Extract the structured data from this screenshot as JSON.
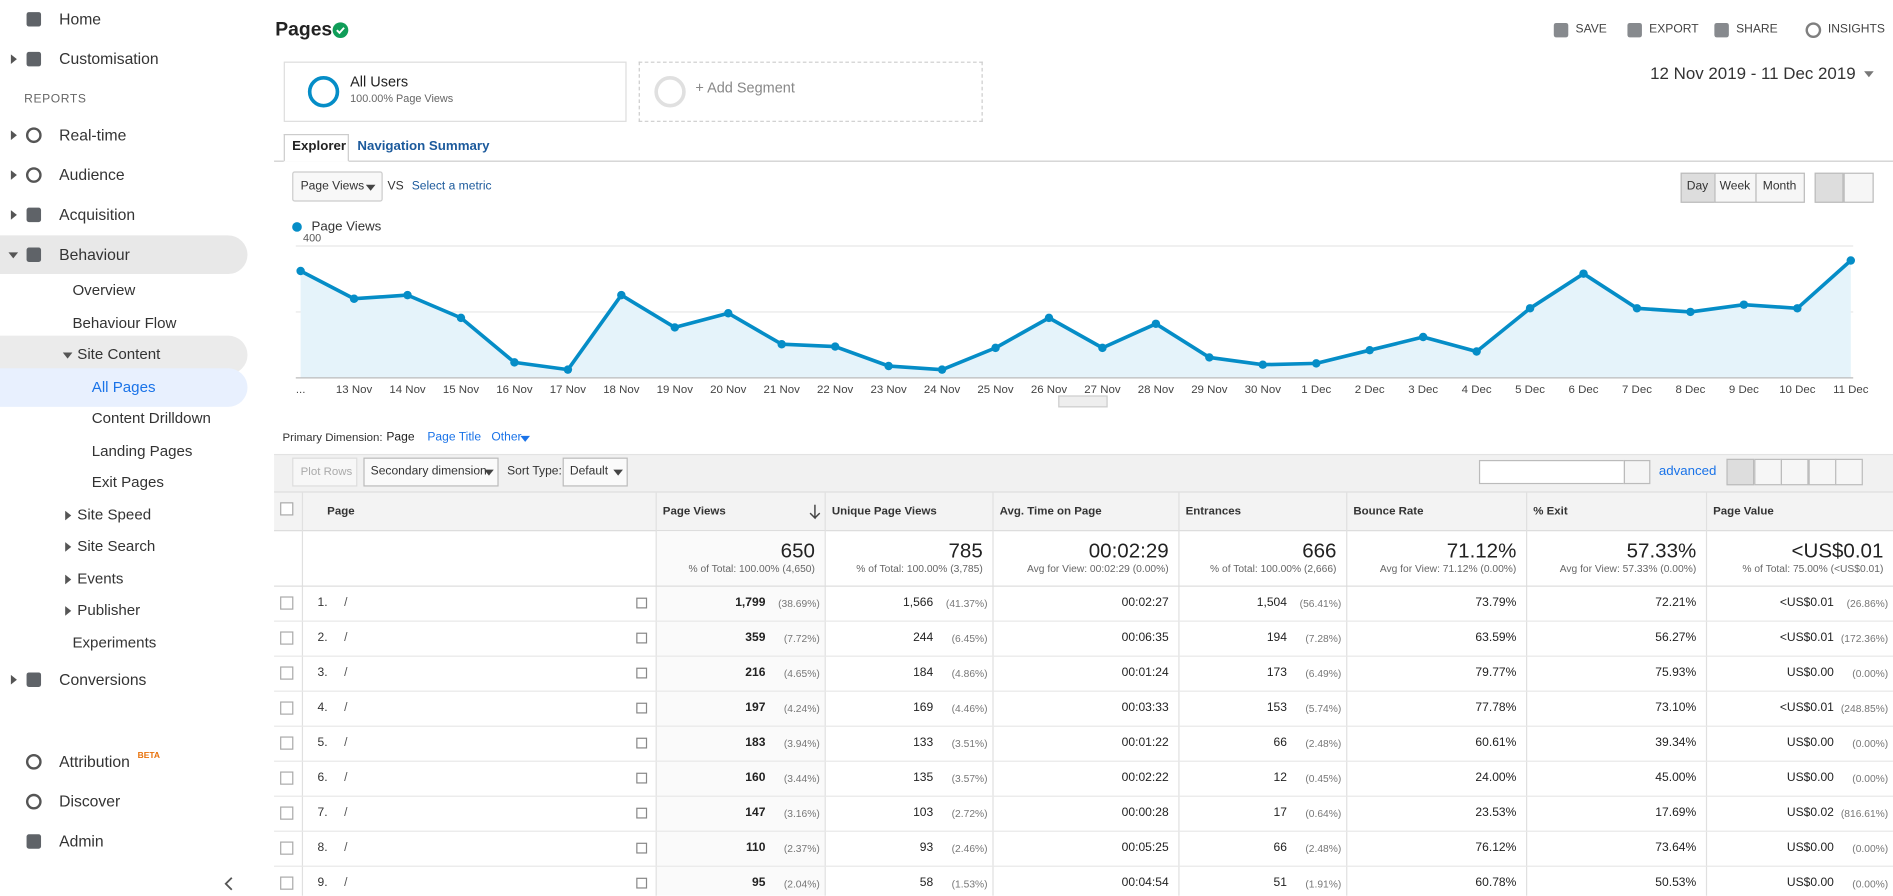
{
  "sidebar": {
    "items": [
      {
        "label": "Home"
      },
      {
        "label": "Customisation"
      },
      {
        "label": "Real-time"
      },
      {
        "label": "Audience"
      },
      {
        "label": "Acquisition"
      },
      {
        "label": "Behaviour"
      },
      {
        "label": "Overview"
      },
      {
        "label": "Behaviour Flow"
      },
      {
        "label": "Site Content"
      },
      {
        "label": "All Pages"
      },
      {
        "label": "Content Drilldown"
      },
      {
        "label": "Landing Pages"
      },
      {
        "label": "Exit Pages"
      },
      {
        "label": "Site Speed"
      },
      {
        "label": "Site Search"
      },
      {
        "label": "Events"
      },
      {
        "label": "Publisher"
      },
      {
        "label": "Experiments"
      },
      {
        "label": "Conversions"
      },
      {
        "label": "Attribution"
      },
      {
        "label": "Discover"
      },
      {
        "label": "Admin"
      }
    ],
    "reports_heading": "REPORTS",
    "attribution_badge": "BETA"
  },
  "header": {
    "title": "Pages",
    "actions": [
      "SAVE",
      "EXPORT",
      "SHARE",
      "INSIGHTS"
    ],
    "date_range": "12 Nov 2019 - 11 Dec 2019"
  },
  "segments": {
    "name": "All Users",
    "detail": "100.00% Page Views",
    "add": "+ Add Segment"
  },
  "tabs": [
    "Explorer",
    "Navigation Summary"
  ],
  "controls": {
    "metric": "Page Views",
    "vs": "VS",
    "select_metric": "Select a metric",
    "periods": [
      "Day",
      "Week",
      "Month"
    ]
  },
  "chart_data": {
    "type": "line",
    "categories": [
      "...",
      "13 Nov",
      "14 Nov",
      "15 Nov",
      "16 Nov",
      "17 Nov",
      "18 Nov",
      "19 Nov",
      "20 Nov",
      "21 Nov",
      "22 Nov",
      "23 Nov",
      "24 Nov",
      "25 Nov",
      "26 Nov",
      "27 Nov",
      "28 Nov",
      "29 Nov",
      "30 Nov",
      "1 Dec",
      "2 Dec",
      "3 Dec",
      "4 Dec",
      "5 Dec",
      "6 Dec",
      "7 Dec",
      "8 Dec",
      "9 Dec",
      "10 Dec",
      "11 Dec"
    ],
    "series": [
      {
        "name": "Page Views",
        "color": "#058dc7",
        "values": [
          324,
          240,
          251,
          182,
          47,
          25,
          251,
          153,
          196,
          102,
          95,
          36,
          25,
          91,
          182,
          91,
          164,
          62,
          40,
          44,
          84,
          124,
          80,
          211,
          316,
          211,
          200,
          222,
          211,
          356
        ]
      }
    ],
    "ylim": [
      0,
      410
    ],
    "yticks": [
      200,
      400
    ],
    "grid": true
  },
  "dimensions": {
    "label": "Primary Dimension:",
    "options": [
      "Page",
      "Page Title",
      "Other"
    ]
  },
  "toolbar": {
    "plot_rows": "Plot Rows",
    "secondary": "Secondary dimension",
    "sort_label": "Sort Type:",
    "sort": "Default",
    "advanced": "advanced"
  },
  "table": {
    "headers": [
      "Page",
      "Page Views",
      "Unique Page Views",
      "Avg. Time on Page",
      "Entrances",
      "Bounce Rate",
      "% Exit",
      "Page Value"
    ],
    "totals": [
      {
        "value": "650",
        "note": "% of Total: 100.00% (4,650)"
      },
      {
        "value": "785",
        "note": "% of Total: 100.00% (3,785)"
      },
      {
        "value": "00:02:29",
        "note": "Avg for View: 00:02:29 (0.00%)"
      },
      {
        "value": "666",
        "note": "% of Total: 100.00% (2,666)"
      },
      {
        "value": "71.12%",
        "note": "Avg for View: 71.12% (0.00%)"
      },
      {
        "value": "57.33%",
        "note": "Avg for View: 57.33% (0.00%)"
      },
      {
        "value": "<US$0.01",
        "note": "% of Total: 75.00% (<US$0.01)"
      }
    ],
    "rows": [
      {
        "index": "1.",
        "page": "/",
        "cells": [
          [
            "1,799",
            "(38.69%)"
          ],
          [
            "1,566",
            "(41.37%)"
          ],
          [
            "00:02:27"
          ],
          [
            "1,504",
            "(56.41%)"
          ],
          [
            "73.79%"
          ],
          [
            "72.21%"
          ],
          [
            "<US$0.01",
            "(26.86%)"
          ]
        ]
      },
      {
        "index": "2.",
        "page": "/",
        "cells": [
          [
            "359",
            "(7.72%)"
          ],
          [
            "244",
            "(6.45%)"
          ],
          [
            "00:06:35"
          ],
          [
            "194",
            "(7.28%)"
          ],
          [
            "63.59%"
          ],
          [
            "56.27%"
          ],
          [
            "<US$0.01",
            "(172.36%)"
          ]
        ]
      },
      {
        "index": "3.",
        "page": "/",
        "cells": [
          [
            "216",
            "(4.65%)"
          ],
          [
            "184",
            "(4.86%)"
          ],
          [
            "00:01:24"
          ],
          [
            "173",
            "(6.49%)"
          ],
          [
            "79.77%"
          ],
          [
            "75.93%"
          ],
          [
            "US$0.00",
            "(0.00%)"
          ]
        ]
      },
      {
        "index": "4.",
        "page": "/",
        "cells": [
          [
            "197",
            "(4.24%)"
          ],
          [
            "169",
            "(4.46%)"
          ],
          [
            "00:03:33"
          ],
          [
            "153",
            "(5.74%)"
          ],
          [
            "77.78%"
          ],
          [
            "73.10%"
          ],
          [
            "<US$0.01",
            "(248.85%)"
          ]
        ]
      },
      {
        "index": "5.",
        "page": "/",
        "cells": [
          [
            "183",
            "(3.94%)"
          ],
          [
            "133",
            "(3.51%)"
          ],
          [
            "00:01:22"
          ],
          [
            "66",
            "(2.48%)"
          ],
          [
            "60.61%"
          ],
          [
            "39.34%"
          ],
          [
            "US$0.00",
            "(0.00%)"
          ]
        ]
      },
      {
        "index": "6.",
        "page": "/",
        "cells": [
          [
            "160",
            "(3.44%)"
          ],
          [
            "135",
            "(3.57%)"
          ],
          [
            "00:02:22"
          ],
          [
            "12",
            "(0.45%)"
          ],
          [
            "24.00%"
          ],
          [
            "45.00%"
          ],
          [
            "US$0.00",
            "(0.00%)"
          ]
        ]
      },
      {
        "index": "7.",
        "page": "/",
        "cells": [
          [
            "147",
            "(3.16%)"
          ],
          [
            "103",
            "(2.72%)"
          ],
          [
            "00:00:28"
          ],
          [
            "17",
            "(0.64%)"
          ],
          [
            "23.53%"
          ],
          [
            "17.69%"
          ],
          [
            "US$0.02",
            "(816.61%)"
          ]
        ]
      },
      {
        "index": "8.",
        "page": "/",
        "cells": [
          [
            "110",
            "(2.37%)"
          ],
          [
            "93",
            "(2.46%)"
          ],
          [
            "00:05:25"
          ],
          [
            "66",
            "(2.48%)"
          ],
          [
            "76.12%"
          ],
          [
            "73.64%"
          ],
          [
            "US$0.00",
            "(0.00%)"
          ]
        ]
      },
      {
        "index": "9.",
        "page": "/",
        "cells": [
          [
            "95",
            "(2.04%)"
          ],
          [
            "58",
            "(1.53%)"
          ],
          [
            "00:04:54"
          ],
          [
            "51",
            "(1.91%)"
          ],
          [
            "60.78%"
          ],
          [
            "50.53%"
          ],
          [
            "US$0.00",
            "(0.00%)"
          ]
        ]
      }
    ]
  }
}
